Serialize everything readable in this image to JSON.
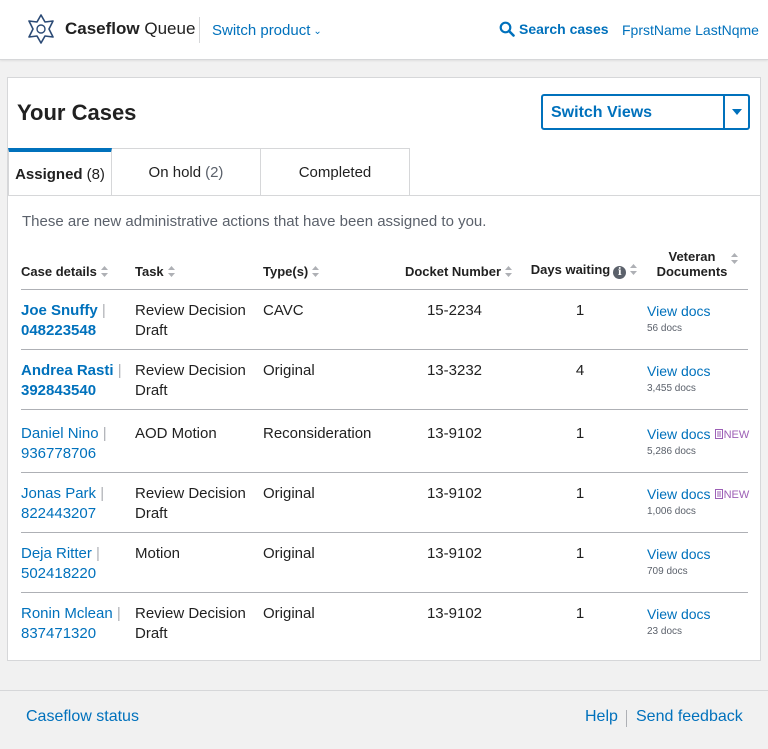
{
  "header": {
    "brand_bold": "Caseflow",
    "brand_light": "Queue",
    "switch_product": "Switch product",
    "search_cases": "Search cases",
    "user_name": "FprstName LastNqme"
  },
  "main": {
    "title": "Your Cases",
    "switch_views": "Switch Views",
    "tabs": [
      {
        "label": "Assigned",
        "count": "(8)",
        "active": true
      },
      {
        "label": "On hold",
        "count": "(2)",
        "active": false
      },
      {
        "label": "Completed",
        "count": "",
        "active": false
      }
    ],
    "description": "These are new administrative actions that have been assigned to you.",
    "columns": {
      "case_details": "Case details",
      "task": "Task",
      "types": "Type(s)",
      "docket_number": "Docket Number",
      "days_waiting": "Days waiting",
      "veteran_documents_1": "Veteran",
      "veteran_documents_2": "Documents"
    },
    "rows": [
      {
        "name": "Joe Snuffy",
        "file": "048223548",
        "task_1": "Review Decision",
        "task_2": "Draft",
        "type": "CAVC",
        "docket": "15-2234",
        "days": "1",
        "docs_link": "View docs",
        "docs": "56 docs",
        "new": ""
      },
      {
        "name": "Andrea Rasti",
        "file": "392843540",
        "task_1": "Review Decision",
        "task_2": "Draft",
        "type": "Original",
        "docket": "13-3232",
        "days": "4",
        "docs_link": "View docs",
        "docs": "3,455 docs",
        "new": ""
      },
      {
        "name": "Daniel Nino",
        "file": "936778706",
        "task_1": "AOD Motion",
        "task_2": "",
        "type": "Reconsideration",
        "docket": "13-9102",
        "days": "1",
        "docs_link": "View docs",
        "docs": "5,286 docs",
        "new": "NEW"
      },
      {
        "name": "Jonas Park",
        "file": "822443207",
        "task_1": "Review Decision",
        "task_2": "Draft",
        "type": "Original",
        "docket": "13-9102",
        "days": "1",
        "docs_link": "View docs",
        "docs": "1,006 docs",
        "new": "NEW"
      },
      {
        "name": "Deja Ritter",
        "file": "502418220",
        "task_1": "Motion",
        "task_2": "",
        "type": "Original",
        "docket": "13-9102",
        "days": "1",
        "docs_link": "View docs",
        "docs": "709 docs",
        "new": ""
      },
      {
        "name": "Ronin Mclean",
        "file": "837471320",
        "task_1": "Review Decision",
        "task_2": "Draft",
        "type": "Original",
        "docket": "13-9102",
        "days": "1",
        "docs_link": "View docs",
        "docs": "23 docs",
        "new": ""
      }
    ]
  },
  "footer": {
    "status": "Caseflow status",
    "help": "Help",
    "feedback": "Send feedback"
  },
  "colors": {
    "link": "#0071bc",
    "cavc": "#e31c3d",
    "new_badge": "#9c5fb5"
  }
}
